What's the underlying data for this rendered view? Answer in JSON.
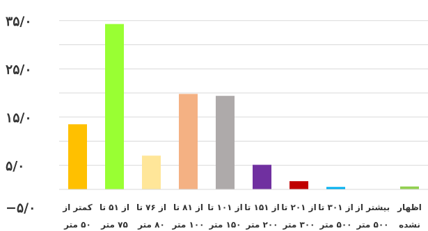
{
  "chart_data": {
    "type": "bar",
    "title": "",
    "xlabel": "",
    "ylabel": "",
    "ylim": [
      -5,
      40
    ],
    "yticks": [
      {
        "value": -5,
        "label": "−۵/۰"
      },
      {
        "value": 5,
        "label": "۵/۰"
      },
      {
        "value": 15,
        "label": "۱۵/۰"
      },
      {
        "value": 25,
        "label": "۲۵/۰"
      },
      {
        "value": 35,
        "label": "۳۵/۰"
      }
    ],
    "gridlines": [
      0,
      5,
      10,
      15,
      20,
      25,
      30,
      35
    ],
    "grid": true,
    "categories": [
      {
        "line1": "کمتر از",
        "line2": "۵۰ متر"
      },
      {
        "line1": "از ۵۱ تا",
        "line2": "۷۵ متر"
      },
      {
        "line1": "از ۷۶ تا",
        "line2": "۸۰ متر"
      },
      {
        "line1": "از ۸۱ تا",
        "line2": "۱۰۰ متر"
      },
      {
        "line1": "از ۱۰۱ تا",
        "line2": "۱۵۰ متر"
      },
      {
        "line1": "از ۱۵۱ تا",
        "line2": "۲۰۰ متر"
      },
      {
        "line1": "از ۲۰۱ تا",
        "line2": "۳۰۰ متر"
      },
      {
        "line1": "از ۳۰۱ تا",
        "line2": "۵۰۰ متر"
      },
      {
        "line1": "بیشتر از",
        "line2": "۵۰۰ متر"
      },
      {
        "line1": "اظهار",
        "line2": "نشده"
      }
    ],
    "values": [
      13.5,
      34.3,
      7.0,
      19.8,
      19.4,
      5.1,
      1.7,
      0.5,
      0.0,
      0.6
    ],
    "colors": [
      "#FFC000",
      "#99FF33",
      "#FFE699",
      "#F4B183",
      "#AEAAAA",
      "#7030A0",
      "#C00000",
      "#00B0F0",
      "#4472C4",
      "#92D050"
    ]
  }
}
